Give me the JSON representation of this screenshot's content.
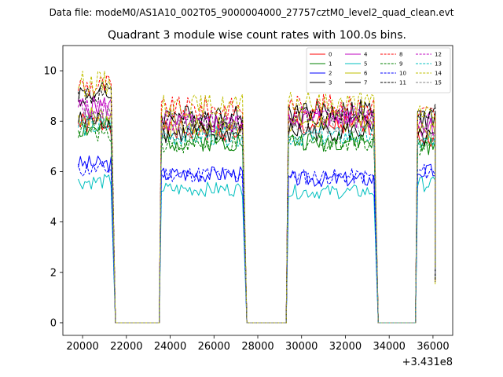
{
  "suptitle": "Data file: modeM0/AS1A10_002T05_9000004000_27757cztM0_level2_quad_clean.evt",
  "chart_data": {
    "type": "line",
    "title": "Quadrant 3 module wise count rates with 100.0s bins.",
    "xlabel": "",
    "ylabel": "",
    "x_offset_label": "+3.431e8",
    "xlim": [
      19100,
      36900
    ],
    "ylim": [
      -0.5,
      11.0
    ],
    "x_ticks": [
      20000,
      22000,
      24000,
      26000,
      28000,
      30000,
      32000,
      34000,
      36000
    ],
    "x_tick_labels": [
      "20000",
      "22000",
      "24000",
      "26000",
      "28000",
      "30000",
      "32000",
      "34000",
      "36000"
    ],
    "y_ticks": [
      0,
      2,
      4,
      6,
      8,
      10
    ],
    "y_tick_labels": [
      "0",
      "2",
      "4",
      "6",
      "8",
      "10"
    ],
    "segments": [
      [
        19800,
        21300
      ],
      [
        23600,
        27300
      ],
      [
        29400,
        33300
      ],
      [
        35300,
        36100
      ]
    ],
    "legend_position": "upper right",
    "series": [
      {
        "name": "0",
        "color": "#ff0000",
        "dash": false,
        "levels": [
          7.9,
          7.6,
          7.8,
          7.4
        ],
        "seed": 1
      },
      {
        "name": "1",
        "color": "#008000",
        "dash": false,
        "levels": [
          7.7,
          7.2,
          7.2,
          7.0
        ],
        "seed": 2
      },
      {
        "name": "2",
        "color": "#0000ff",
        "dash": false,
        "levels": [
          6.3,
          5.9,
          5.7,
          6.0
        ],
        "seed": 3
      },
      {
        "name": "3",
        "color": "#000000",
        "dash": false,
        "levels": [
          9.1,
          8.2,
          8.4,
          8.1
        ],
        "seed": 4
      },
      {
        "name": "4",
        "color": "#bf00bf",
        "dash": false,
        "levels": [
          8.6,
          7.9,
          8.1,
          7.8
        ],
        "seed": 5
      },
      {
        "name": "5",
        "color": "#00bfbf",
        "dash": false,
        "levels": [
          5.6,
          5.3,
          5.2,
          5.5
        ],
        "seed": 6
      },
      {
        "name": "6",
        "color": "#bfbf00",
        "dash": false,
        "levels": [
          8.2,
          7.8,
          8.0,
          7.6
        ],
        "seed": 7
      },
      {
        "name": "7",
        "color": "#000000",
        "dash": false,
        "levels": [
          8.0,
          7.5,
          7.6,
          7.3
        ],
        "seed": 8
      },
      {
        "name": "8",
        "color": "#ff0000",
        "dash": true,
        "levels": [
          9.4,
          8.5,
          8.6,
          8.3
        ],
        "seed": 9
      },
      {
        "name": "9",
        "color": "#008000",
        "dash": true,
        "levels": [
          7.6,
          7.1,
          7.2,
          7.0
        ],
        "seed": 10
      },
      {
        "name": "10",
        "color": "#0000ff",
        "dash": true,
        "levels": [
          6.1,
          5.9,
          5.8,
          6.0
        ],
        "seed": 11
      },
      {
        "name": "11",
        "color": "#000000",
        "dash": true,
        "levels": [
          9.0,
          8.0,
          8.2,
          8.4
        ],
        "seed": 12
      },
      {
        "name": "12",
        "color": "#bf00bf",
        "dash": true,
        "levels": [
          8.5,
          8.0,
          8.2,
          7.9
        ],
        "seed": 13
      },
      {
        "name": "13",
        "color": "#00bfbf",
        "dash": true,
        "levels": [
          7.8,
          7.4,
          7.4,
          7.2
        ],
        "seed": 14
      },
      {
        "name": "14",
        "color": "#bfbf00",
        "dash": true,
        "levels": [
          9.5,
          8.6,
          8.7,
          8.4
        ],
        "seed": 15
      },
      {
        "name": "15",
        "color": "#808080",
        "dash": true,
        "levels": [
          8.1,
          7.7,
          7.8,
          7.5
        ],
        "seed": 16
      }
    ]
  }
}
